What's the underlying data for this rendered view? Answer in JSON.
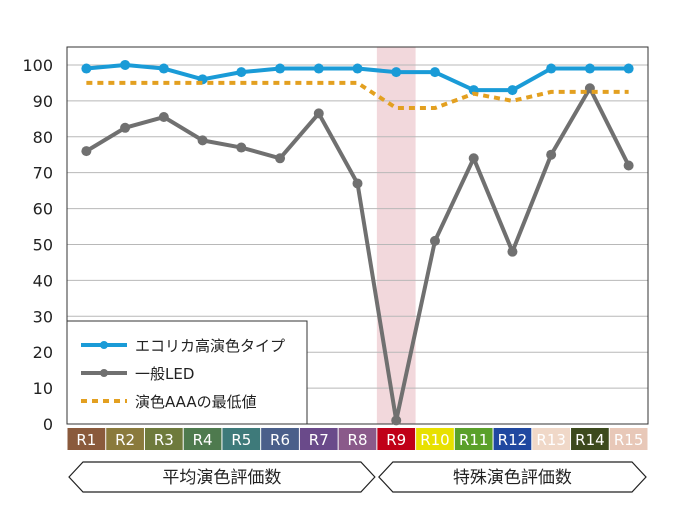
{
  "chart_data": {
    "type": "line",
    "categories": [
      "R1",
      "R2",
      "R3",
      "R4",
      "R5",
      "R6",
      "R7",
      "R8",
      "R9",
      "R10",
      "R11",
      "R12",
      "R13",
      "R14",
      "R15"
    ],
    "category_colors": [
      "#8a5a3c",
      "#8a7a3c",
      "#6e7a3c",
      "#4e7a4e",
      "#3e7a7a",
      "#4a5f8a",
      "#6a4a8a",
      "#8a5a8a",
      "#c00018",
      "#e8e000",
      "#5aa02a",
      "#2048a0",
      "#f0d8c8",
      "#3c4a1e",
      "#e8c8b8"
    ],
    "y_ticks": [
      0,
      10,
      20,
      30,
      40,
      50,
      60,
      70,
      80,
      90,
      100
    ],
    "ylim": [
      0,
      105
    ],
    "grid": true,
    "highlight_category": "R9",
    "highlight_color": "#f2d8dc",
    "series": [
      {
        "name": "エコリカ高演色タイプ",
        "color": "#1a9bd7",
        "style": "solid-markers",
        "values": [
          99,
          100,
          99,
          96,
          98,
          99,
          99,
          99,
          98,
          98,
          93,
          93,
          99,
          99,
          99
        ]
      },
      {
        "name": "一般LED",
        "color": "#707070",
        "style": "solid-markers",
        "values": [
          76,
          82.5,
          85.5,
          79,
          77,
          74,
          86.5,
          67,
          1,
          51,
          74,
          48,
          75,
          93.5,
          72
        ]
      },
      {
        "name": "演色AAAの最低値",
        "color": "#e3a020",
        "style": "dotted",
        "values": [
          95,
          95,
          95,
          95,
          95,
          95,
          95,
          95,
          88,
          88,
          92,
          90,
          92.5,
          92.5,
          92.5
        ]
      }
    ],
    "groups": [
      {
        "label": "平均演色評価数",
        "from": "R1",
        "to": "R8"
      },
      {
        "label": "特殊演色評価数",
        "from": "R9",
        "to": "R15"
      }
    ],
    "legend_position": "bottom-left"
  }
}
